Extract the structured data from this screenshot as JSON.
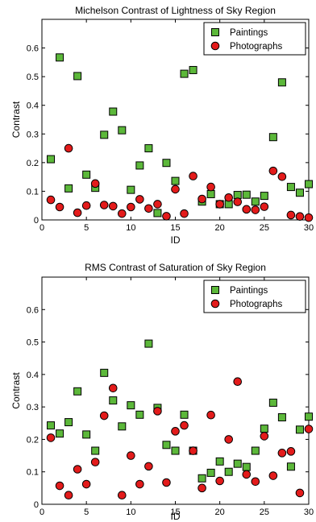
{
  "chart_data": [
    {
      "type": "scatter",
      "title": "Michelson Contrast of Lightness of Sky Region",
      "xlabel": "ID",
      "ylabel": "Contrast",
      "xlim": [
        0,
        30
      ],
      "ylim": [
        0,
        0.7
      ],
      "xticks": [
        "0",
        "5",
        "10",
        "15",
        "20",
        "25",
        "30"
      ],
      "yticks": [
        "0",
        "0.1",
        "0.2",
        "0.3",
        "0.4",
        "0.5",
        "0.6"
      ],
      "legend_position": "top-right",
      "series": [
        {
          "name": "Paintings",
          "marker": "square",
          "color": "#5cb83a",
          "x": [
            1,
            2,
            3,
            4,
            5,
            6,
            7,
            8,
            9,
            10,
            11,
            12,
            13,
            14,
            15,
            16,
            17,
            18,
            19,
            20,
            21,
            22,
            23,
            24,
            25,
            26,
            27,
            28,
            29,
            30
          ],
          "y": [
            0.212,
            0.567,
            0.11,
            0.502,
            0.158,
            0.112,
            0.297,
            0.378,
            0.313,
            0.105,
            0.19,
            0.25,
            0.024,
            0.199,
            0.136,
            0.51,
            0.523,
            0.064,
            0.09,
            0.055,
            0.055,
            0.087,
            0.088,
            0.064,
            0.084,
            0.289,
            0.48,
            0.115,
            0.095,
            0.125
          ]
        },
        {
          "name": "Photographs",
          "marker": "circle",
          "color": "#e31b1b",
          "x": [
            1,
            2,
            3,
            4,
            5,
            6,
            7,
            8,
            9,
            10,
            11,
            12,
            13,
            14,
            15,
            16,
            17,
            18,
            19,
            20,
            21,
            22,
            23,
            24,
            25,
            26,
            27,
            28,
            29,
            30
          ],
          "y": [
            0.07,
            0.045,
            0.25,
            0.025,
            0.05,
            0.127,
            0.052,
            0.048,
            0.022,
            0.045,
            0.072,
            0.04,
            0.055,
            0.013,
            0.107,
            0.022,
            0.153,
            0.073,
            0.115,
            0.055,
            0.078,
            0.063,
            0.037,
            0.035,
            0.046,
            0.171,
            0.151,
            0.017,
            0.012,
            0.008
          ]
        }
      ]
    },
    {
      "type": "scatter",
      "title": "RMS Contrast of Saturation of Sky Region",
      "xlabel": "ID",
      "ylabel": "Contrast",
      "xlim": [
        0,
        30
      ],
      "ylim": [
        0,
        0.7
      ],
      "xticks": [
        "0",
        "5",
        "10",
        "15",
        "20",
        "25",
        "30"
      ],
      "yticks": [
        "0",
        "0.1",
        "0.2",
        "0.3",
        "0.4",
        "0.5",
        "0.6"
      ],
      "legend_position": "top-right",
      "series": [
        {
          "name": "Paintings",
          "marker": "square",
          "color": "#5cb83a",
          "x": [
            1,
            2,
            3,
            4,
            5,
            6,
            7,
            8,
            9,
            10,
            11,
            12,
            13,
            14,
            15,
            16,
            17,
            18,
            19,
            20,
            21,
            22,
            23,
            24,
            25,
            26,
            27,
            28,
            29,
            30
          ],
          "y": [
            0.243,
            0.218,
            0.253,
            0.348,
            0.215,
            0.165,
            0.405,
            0.32,
            0.24,
            0.305,
            0.276,
            0.495,
            0.297,
            0.183,
            0.165,
            0.276,
            0.165,
            0.08,
            0.097,
            0.132,
            0.1,
            0.125,
            0.115,
            0.165,
            0.233,
            0.313,
            0.268,
            0.116,
            0.23,
            0.27
          ]
        },
        {
          "name": "Photographs",
          "marker": "circle",
          "color": "#e31b1b",
          "x": [
            1,
            2,
            3,
            4,
            5,
            6,
            7,
            8,
            9,
            10,
            11,
            12,
            13,
            14,
            15,
            16,
            17,
            18,
            19,
            20,
            21,
            22,
            23,
            24,
            25,
            26,
            27,
            28,
            29,
            30
          ],
          "y": [
            0.205,
            0.057,
            0.028,
            0.108,
            0.062,
            0.13,
            0.273,
            0.358,
            0.028,
            0.15,
            0.062,
            0.117,
            0.287,
            0.067,
            0.225,
            0.243,
            0.165,
            0.05,
            0.275,
            0.072,
            0.2,
            0.378,
            0.092,
            0.07,
            0.21,
            0.088,
            0.158,
            0.163,
            0.035,
            0.232
          ]
        }
      ]
    }
  ]
}
